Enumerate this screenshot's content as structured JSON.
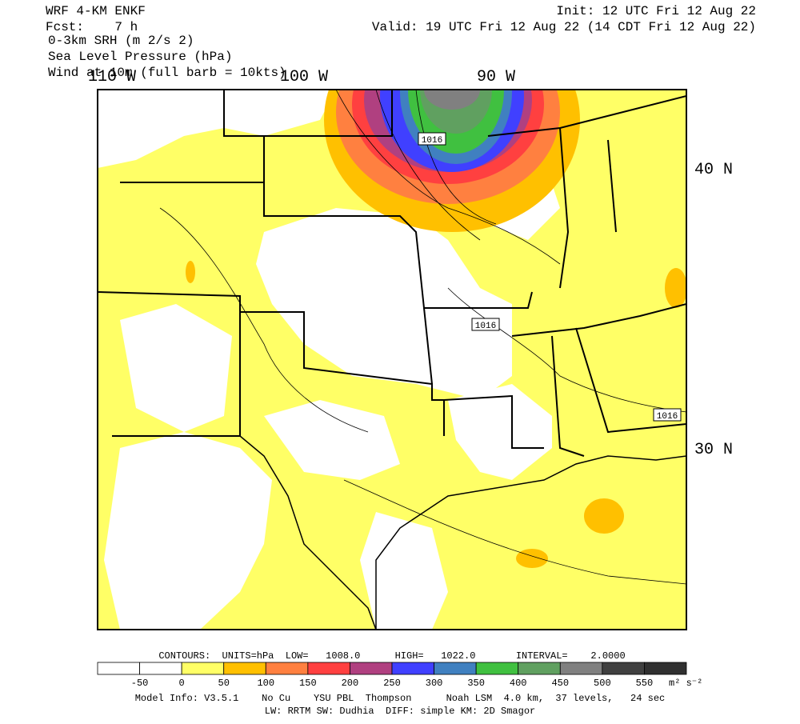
{
  "header": {
    "model": "WRF 4-KM ENKF",
    "forecast": "Fcst:    7 h",
    "init": "Init: 12 UTC Fri 12 Aug 22",
    "valid": "Valid: 19 UTC Fri 12 Aug 22 (14 CDT Fri 12 Aug 22)",
    "fields": [
      "0-3km SRH (m 2/s 2)",
      "Sea Level Pressure (hPa)",
      "Wind at 10m (full barb = 10kts)"
    ]
  },
  "map": {
    "longitude_labels": [
      "110 W",
      "100 W",
      "90 W"
    ],
    "latitude_labels": [
      "40 N",
      "30 N"
    ],
    "contour_labels": [
      "1016",
      "1016",
      "1016"
    ]
  },
  "colorbar": {
    "colors": [
      "#ffffff",
      "#ffffff",
      "#ffff66",
      "#ffc000",
      "#ff8040",
      "#ff4040",
      "#b04080",
      "#4040ff",
      "#4080c0",
      "#40c040",
      "#60a060",
      "#808080",
      "#404040",
      "#303030"
    ],
    "labels": [
      "-50",
      "0",
      "50",
      "100",
      "150",
      "200",
      "250",
      "300",
      "350",
      "400",
      "450",
      "500",
      "550"
    ],
    "units": "m² s⁻²"
  },
  "footer": {
    "contours": "CONTOURS:  UNITS=hPa  LOW=   1008.0      HIGH=   1022.0       INTERVAL=    2.0000",
    "model_info": "Model Info: V3.5.1    No Cu    YSU PBL  Thompson      Noah LSM  4.0 km,  37 levels,   24 sec",
    "physics": "LW: RRTM SW: Dudhia  DIFF: simple KM: 2D Smagor"
  }
}
